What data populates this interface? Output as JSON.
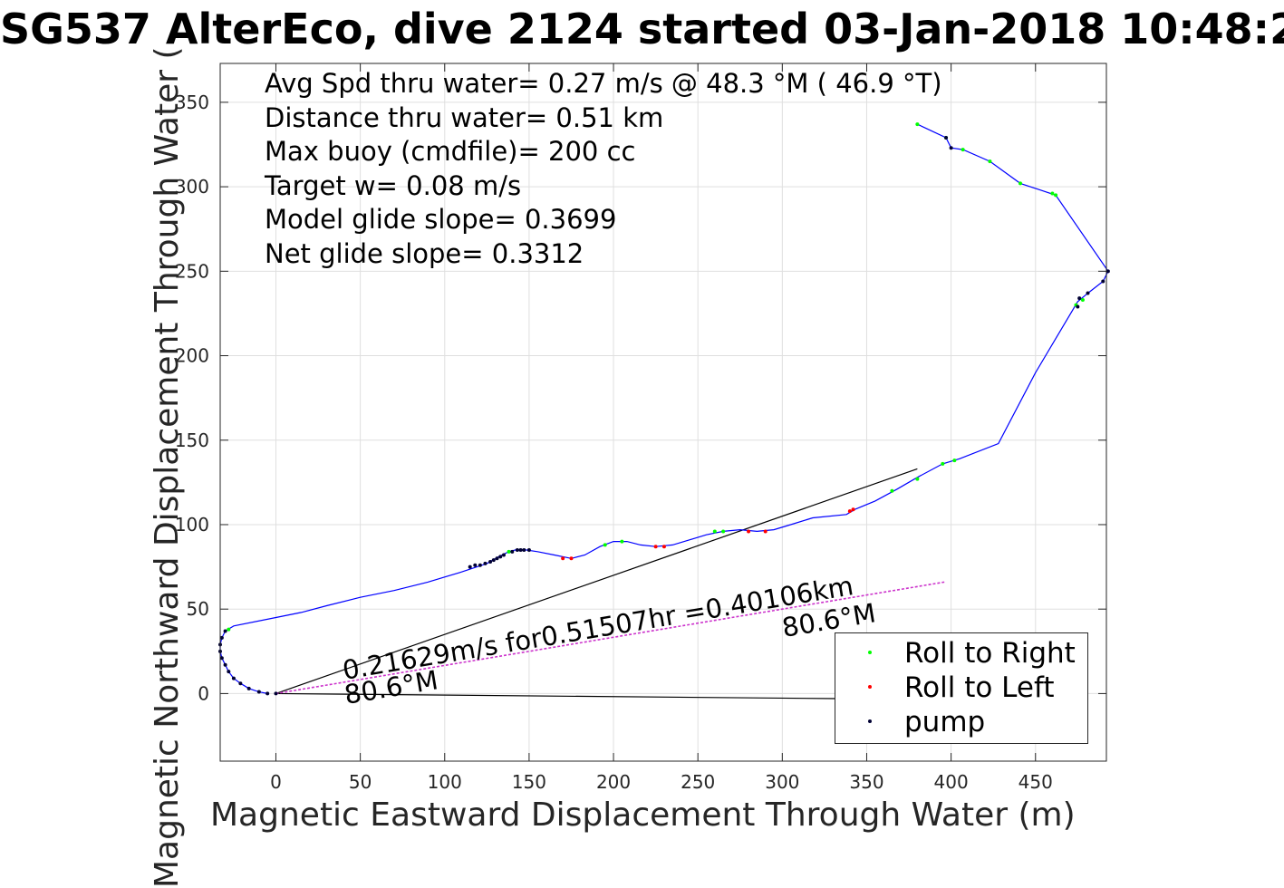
{
  "title": "SG537 AlterEco, dive 2124 started 03-Jan-2018 10:48:2",
  "stats": [
    "Avg Spd thru water=  0.27 m/s @  48.3 °M ( 46.9 °T)",
    "Distance thru water=  0.51 km",
    "Max buoy (cmdfile)= 200 cc",
    "Target w= 0.08 m/s",
    "Model glide slope= 0.3699",
    "Net glide slope= 0.3312"
  ],
  "legend": [
    {
      "label": "Roll to Right",
      "color": "#00ff00"
    },
    {
      "label": "Roll to Left",
      "color": "#ff0000"
    },
    {
      "label": "pump",
      "color": "#000033"
    }
  ],
  "annotations": {
    "current": "0.21629m/s for0.51507hr =0.40106km",
    "heading_near": "80.6°M",
    "heading_far": "80.6°M"
  },
  "chart_data": {
    "type": "line",
    "xlabel": "Magnetic Eastward Displacement Through Water (m)",
    "ylabel": "Magnetic Northward Displacement Through Water (",
    "xlim": [
      -33,
      492
    ],
    "ylim": [
      -40,
      373
    ],
    "xticks": [
      0,
      50,
      100,
      150,
      200,
      250,
      300,
      350,
      400,
      450
    ],
    "yticks": [
      0,
      50,
      100,
      150,
      200,
      250,
      300,
      350
    ],
    "grid": true,
    "legend_position": "bottom-right",
    "colors": {
      "track": "#0000ff",
      "current": "#cc33cc",
      "reference": "#000000",
      "axes": "#262626",
      "grid": "#dfdfdf"
    },
    "track": [
      [
        -5,
        0
      ],
      [
        -10,
        1
      ],
      [
        -16,
        3
      ],
      [
        -21,
        6
      ],
      [
        -25,
        9
      ],
      [
        -28,
        13
      ],
      [
        -30,
        17
      ],
      [
        -32,
        21
      ],
      [
        -33,
        25
      ],
      [
        -33,
        29
      ],
      [
        -32,
        33
      ],
      [
        -30,
        37
      ],
      [
        -25,
        40
      ],
      [
        0,
        45
      ],
      [
        15,
        48
      ],
      [
        30,
        52
      ],
      [
        50,
        57
      ],
      [
        70,
        61
      ],
      [
        90,
        66
      ],
      [
        110,
        72
      ],
      [
        125,
        77
      ],
      [
        132,
        81
      ],
      [
        138,
        84
      ],
      [
        142,
        85
      ],
      [
        148,
        85
      ],
      [
        155,
        84
      ],
      [
        165,
        82
      ],
      [
        175,
        80
      ],
      [
        183,
        82
      ],
      [
        192,
        87
      ],
      [
        200,
        90
      ],
      [
        208,
        90
      ],
      [
        216,
        88
      ],
      [
        225,
        87
      ],
      [
        235,
        88
      ],
      [
        245,
        91
      ],
      [
        255,
        94
      ],
      [
        265,
        96
      ],
      [
        275,
        97
      ],
      [
        285,
        96
      ],
      [
        295,
        97
      ],
      [
        305,
        100
      ],
      [
        318,
        104
      ],
      [
        338,
        106
      ],
      [
        343,
        109
      ],
      [
        355,
        114
      ],
      [
        368,
        121
      ],
      [
        380,
        128
      ],
      [
        395,
        136
      ],
      [
        405,
        139
      ],
      [
        428,
        148
      ],
      [
        450,
        190
      ],
      [
        475,
        232
      ],
      [
        481,
        237
      ],
      [
        490,
        244
      ],
      [
        493,
        250
      ],
      [
        462,
        295
      ],
      [
        441,
        302
      ],
      [
        423,
        315
      ],
      [
        407,
        322
      ],
      [
        400,
        323
      ],
      [
        397,
        329
      ],
      [
        380,
        337
      ]
    ],
    "green_points": [
      [
        380,
        337
      ],
      [
        397,
        329
      ],
      [
        407,
        322
      ],
      [
        423,
        315
      ],
      [
        441,
        302
      ],
      [
        460,
        296
      ],
      [
        462,
        295
      ],
      [
        478,
        233
      ],
      [
        474,
        230
      ],
      [
        380,
        127
      ],
      [
        365,
        120
      ],
      [
        395,
        136
      ],
      [
        402,
        138
      ],
      [
        138,
        84
      ],
      [
        195,
        88
      ],
      [
        205,
        90
      ],
      [
        260,
        96
      ],
      [
        265,
        96
      ],
      [
        -28,
        38
      ]
    ],
    "red_points": [
      [
        342,
        109
      ],
      [
        340,
        108
      ],
      [
        170,
        80
      ],
      [
        175,
        80
      ],
      [
        230,
        87
      ],
      [
        225,
        87
      ],
      [
        290,
        96
      ],
      [
        280,
        96
      ]
    ],
    "pump_points": [
      [
        493,
        250
      ],
      [
        490,
        244
      ],
      [
        481,
        237
      ],
      [
        476,
        234
      ],
      [
        475,
        229
      ],
      [
        400,
        323
      ],
      [
        397,
        329
      ],
      [
        115,
        75
      ],
      [
        118,
        76
      ],
      [
        121,
        76
      ],
      [
        124,
        77
      ],
      [
        127,
        78
      ],
      [
        129,
        79
      ],
      [
        131,
        80
      ],
      [
        133,
        81
      ],
      [
        135,
        82
      ],
      [
        140,
        84
      ],
      [
        143,
        85
      ],
      [
        145,
        85
      ],
      [
        147,
        85
      ],
      [
        150,
        85
      ],
      [
        -16,
        3
      ],
      [
        -21,
        6
      ],
      [
        -25,
        9
      ],
      [
        -28,
        13
      ],
      [
        -30,
        17
      ],
      [
        -32,
        21
      ],
      [
        -33,
        25
      ],
      [
        -33,
        29
      ],
      [
        -32,
        33
      ],
      [
        -30,
        37
      ],
      [
        -10,
        1
      ],
      [
        -5,
        0
      ],
      [
        0,
        0
      ]
    ],
    "current_vector": [
      [
        0,
        0
      ],
      [
        396,
        66
      ]
    ],
    "reference_lines": [
      [
        [
          0,
          0
        ],
        [
          380,
          133
        ]
      ],
      [
        [
          0,
          0
        ],
        [
          333,
          -3
        ]
      ]
    ]
  }
}
